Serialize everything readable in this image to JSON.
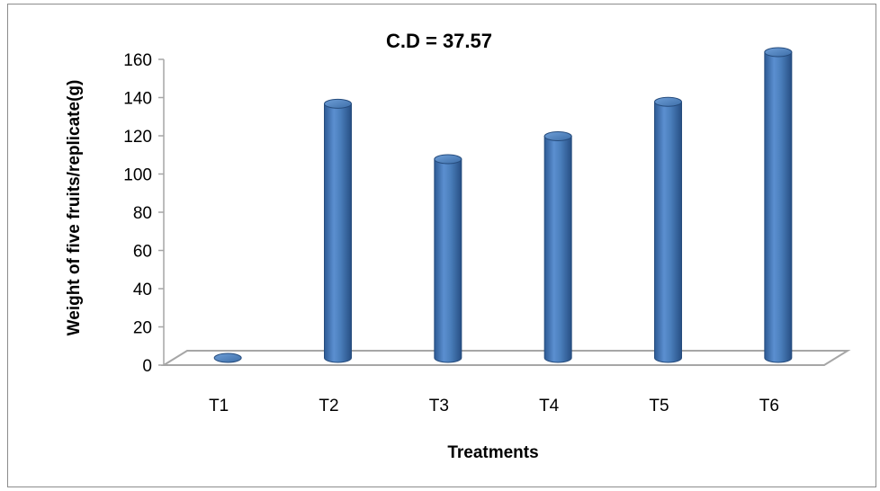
{
  "chart_data": {
    "type": "bar",
    "title": "C.D = 37.57",
    "xlabel": "Treatments",
    "ylabel": "Weight of five fruits/replicate(g)",
    "categories": [
      "T1",
      "T2",
      "T3",
      "T4",
      "T5",
      "T6"
    ],
    "values": [
      0,
      133,
      104,
      116,
      134,
      160
    ],
    "ylim": [
      0,
      160
    ],
    "yticks": [
      0,
      20,
      40,
      60,
      80,
      100,
      120,
      140,
      160
    ],
    "grid": false,
    "legend": "none",
    "bar_color": "#4a7ebb"
  }
}
